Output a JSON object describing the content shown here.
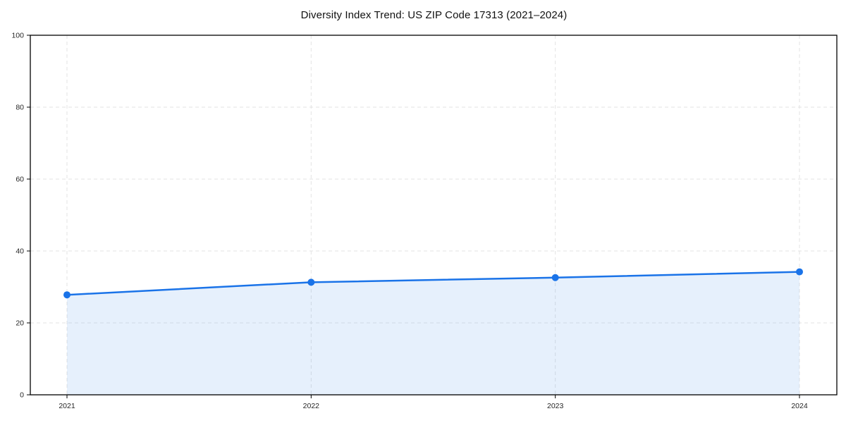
{
  "chart_data": {
    "type": "area",
    "title": "Diversity Index Trend: US ZIP Code 17313 (2021–2024)",
    "x": [
      "2021",
      "2022",
      "2023",
      "2024"
    ],
    "series": [
      {
        "name": "Diversity Index",
        "values": [
          27.8,
          31.3,
          32.6,
          34.2
        ]
      }
    ],
    "xlabel": "",
    "ylabel": "",
    "ylim": [
      0,
      100
    ],
    "yticks": [
      0,
      20,
      40,
      60,
      80,
      100
    ],
    "grid": "dashed, horizontal and vertical",
    "legend_position": "none",
    "line_color": "#1a73e8",
    "fill_color": "#1a73e8",
    "fill_opacity": 0.11,
    "marker": "circle",
    "grid_color": "#e3e3e3",
    "spine_color": "#000000",
    "tick_label_color": "#262626"
  }
}
